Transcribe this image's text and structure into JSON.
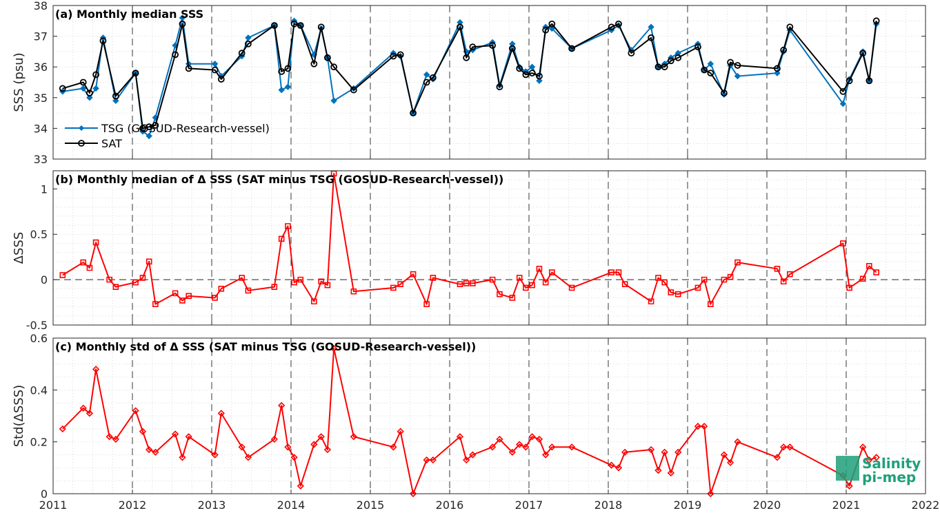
{
  "chart_data": [
    {
      "type": "line",
      "title": "(a) Monthly median SSS",
      "xlabel": "",
      "ylabel": "SSS (psu)",
      "xlim": [
        2011,
        2022
      ],
      "ylim": [
        33,
        38
      ],
      "x_ticks": [
        "2011",
        "2012",
        "2013",
        "2014",
        "2015",
        "2016",
        "2017",
        "2018",
        "2019",
        "2020",
        "2021",
        "2022"
      ],
      "y_ticks": [
        "33",
        "34",
        "35",
        "36",
        "37",
        "38"
      ],
      "grid": true,
      "legend_position": "bottom-left",
      "series": [
        {
          "name": "TSG (GOSUD-Research-vessel)",
          "color": "#0072BD",
          "marker": "diamond",
          "x": [
            2011.12,
            2011.38,
            2011.46,
            2011.54,
            2011.63,
            2011.79,
            2012.04,
            2012.13,
            2012.21,
            2012.29,
            2012.54,
            2012.63,
            2012.71,
            2013.04,
            2013.12,
            2013.38,
            2013.46,
            2013.79,
            2013.88,
            2013.96,
            2014.04,
            2014.12,
            2014.29,
            2014.38,
            2014.46,
            2014.54,
            2014.79,
            2015.29,
            2015.38,
            2015.54,
            2015.71,
            2015.79,
            2016.13,
            2016.21,
            2016.29,
            2016.54,
            2016.63,
            2016.79,
            2016.88,
            2016.96,
            2017.04,
            2017.13,
            2017.21,
            2017.29,
            2017.54,
            2018.04,
            2018.13,
            2018.29,
            2018.54,
            2018.63,
            2018.71,
            2018.79,
            2018.88,
            2019.13,
            2019.21,
            2019.29,
            2019.46,
            2019.54,
            2019.63,
            2020.13,
            2020.21,
            2020.29,
            2020.96,
            2021.04,
            2021.21,
            2021.29,
            2021.38
          ],
          "y": [
            35.2,
            35.3,
            35.0,
            35.3,
            36.95,
            34.9,
            35.8,
            33.9,
            33.75,
            34.35,
            36.7,
            37.6,
            36.1,
            36.1,
            35.7,
            36.35,
            36.95,
            37.35,
            35.25,
            35.35,
            37.5,
            37.35,
            36.4,
            37.25,
            36.3,
            34.9,
            35.3,
            36.45,
            36.35,
            34.5,
            35.75,
            35.6,
            37.45,
            36.5,
            36.55,
            36.8,
            35.4,
            36.75,
            36.0,
            35.85,
            36.0,
            35.55,
            37.3,
            37.25,
            36.6,
            37.2,
            37.35,
            36.55,
            37.3,
            36.0,
            36.1,
            36.3,
            36.45,
            36.75,
            35.9,
            36.1,
            35.1,
            36.05,
            35.7,
            35.8,
            36.5,
            37.2,
            34.8,
            35.6,
            36.5,
            35.55,
            37.4
          ]
        },
        {
          "name": "SAT",
          "color": "#000000",
          "marker": "circle",
          "x": [
            2011.12,
            2011.38,
            2011.46,
            2011.54,
            2011.63,
            2011.79,
            2012.04,
            2012.13,
            2012.21,
            2012.29,
            2012.54,
            2012.63,
            2012.71,
            2013.04,
            2013.12,
            2013.38,
            2013.46,
            2013.79,
            2013.88,
            2013.96,
            2014.04,
            2014.12,
            2014.29,
            2014.38,
            2014.46,
            2014.54,
            2014.79,
            2015.29,
            2015.38,
            2015.54,
            2015.71,
            2015.79,
            2016.13,
            2016.21,
            2016.29,
            2016.54,
            2016.63,
            2016.79,
            2016.88,
            2016.96,
            2017.04,
            2017.13,
            2017.21,
            2017.29,
            2017.54,
            2018.04,
            2018.13,
            2018.29,
            2018.54,
            2018.63,
            2018.71,
            2018.79,
            2018.88,
            2019.13,
            2019.21,
            2019.29,
            2019.46,
            2019.54,
            2019.63,
            2020.13,
            2020.21,
            2020.29,
            2020.96,
            2021.04,
            2021.21,
            2021.29,
            2021.38
          ],
          "y": [
            35.3,
            35.5,
            35.15,
            35.75,
            36.85,
            35.05,
            35.8,
            34.0,
            34.05,
            34.1,
            36.4,
            37.4,
            35.95,
            35.9,
            35.6,
            36.45,
            36.75,
            37.35,
            35.85,
            35.95,
            37.4,
            37.35,
            36.1,
            37.3,
            36.3,
            36.0,
            35.25,
            36.35,
            36.4,
            34.5,
            35.5,
            35.65,
            37.3,
            36.3,
            36.65,
            36.7,
            35.35,
            36.6,
            35.95,
            35.75,
            35.8,
            35.7,
            37.2,
            37.4,
            36.6,
            37.3,
            37.4,
            36.45,
            36.95,
            36.0,
            36.0,
            36.2,
            36.3,
            36.65,
            35.9,
            35.8,
            35.15,
            36.15,
            36.05,
            35.95,
            36.55,
            37.3,
            35.2,
            35.55,
            36.45,
            35.55,
            37.5
          ]
        }
      ]
    },
    {
      "type": "line",
      "title": "(b) Monthly median of Δ SSS (SAT minus TSG (GOSUD-Research-vessel))",
      "xlabel": "",
      "ylabel": "ΔSSS",
      "xlim": [
        2011,
        2022
      ],
      "ylim": [
        -0.5,
        1.2
      ],
      "x_ticks": [
        "2011",
        "2012",
        "2013",
        "2014",
        "2015",
        "2016",
        "2017",
        "2018",
        "2019",
        "2020",
        "2021",
        "2022"
      ],
      "y_ticks": [
        "-0.5",
        "0",
        "0.5",
        "1"
      ],
      "zero_line": true,
      "grid": true,
      "series": [
        {
          "color": "#FF0000",
          "marker": "square",
          "x": [
            2011.12,
            2011.38,
            2011.46,
            2011.54,
            2011.71,
            2011.79,
            2012.04,
            2012.13,
            2012.21,
            2012.29,
            2012.54,
            2012.63,
            2012.71,
            2013.04,
            2013.12,
            2013.38,
            2013.46,
            2013.79,
            2013.88,
            2013.96,
            2014.04,
            2014.12,
            2014.29,
            2014.38,
            2014.46,
            2014.54,
            2014.79,
            2015.29,
            2015.38,
            2015.54,
            2015.71,
            2015.79,
            2016.13,
            2016.21,
            2016.29,
            2016.54,
            2016.63,
            2016.79,
            2016.88,
            2016.96,
            2017.04,
            2017.13,
            2017.21,
            2017.29,
            2017.54,
            2018.04,
            2018.13,
            2018.21,
            2018.54,
            2018.63,
            2018.71,
            2018.79,
            2018.88,
            2019.13,
            2019.21,
            2019.29,
            2019.46,
            2019.54,
            2019.63,
            2020.13,
            2020.21,
            2020.29,
            2020.96,
            2021.04,
            2021.21,
            2021.29,
            2021.38
          ],
          "y": [
            0.05,
            0.19,
            0.13,
            0.41,
            0.0,
            -0.08,
            -0.03,
            0.02,
            0.2,
            -0.27,
            -0.15,
            -0.23,
            -0.18,
            -0.2,
            -0.1,
            0.02,
            -0.12,
            -0.08,
            0.45,
            0.59,
            -0.03,
            0.0,
            -0.24,
            -0.02,
            -0.06,
            1.17,
            -0.13,
            -0.09,
            -0.05,
            0.06,
            -0.27,
            0.02,
            -0.05,
            -0.04,
            -0.04,
            0.0,
            -0.16,
            -0.2,
            0.02,
            -0.09,
            -0.06,
            0.12,
            -0.03,
            0.08,
            -0.09,
            0.08,
            0.08,
            -0.05,
            -0.24,
            0.02,
            -0.03,
            -0.14,
            -0.16,
            -0.09,
            0.0,
            -0.27,
            0.0,
            0.03,
            0.19,
            0.12,
            -0.02,
            0.06,
            0.4,
            -0.09,
            0.01,
            0.15,
            0.08
          ]
        }
      ]
    },
    {
      "type": "line",
      "title": "(c) Monthly std of Δ SSS (SAT minus TSG (GOSUD-Research-vessel))",
      "xlabel": "",
      "ylabel": "Std(ΔSSS)",
      "xlim": [
        2011,
        2022
      ],
      "ylim": [
        0,
        0.6
      ],
      "x_ticks": [
        "2011",
        "2012",
        "2013",
        "2014",
        "2015",
        "2016",
        "2017",
        "2018",
        "2019",
        "2020",
        "2021",
        "2022"
      ],
      "y_ticks": [
        "0",
        "0.2",
        "0.4",
        "0.6"
      ],
      "grid": true,
      "series": [
        {
          "color": "#FF0000",
          "marker": "diamond",
          "x": [
            2011.12,
            2011.38,
            2011.46,
            2011.54,
            2011.71,
            2011.79,
            2012.04,
            2012.13,
            2012.21,
            2012.29,
            2012.54,
            2012.63,
            2012.71,
            2013.04,
            2013.12,
            2013.38,
            2013.46,
            2013.79,
            2013.88,
            2013.96,
            2014.04,
            2014.12,
            2014.29,
            2014.38,
            2014.46,
            2014.54,
            2014.79,
            2015.29,
            2015.38,
            2015.54,
            2015.71,
            2015.79,
            2016.13,
            2016.21,
            2016.29,
            2016.54,
            2016.63,
            2016.79,
            2016.88,
            2016.96,
            2017.04,
            2017.13,
            2017.21,
            2017.29,
            2017.54,
            2018.04,
            2018.13,
            2018.21,
            2018.54,
            2018.63,
            2018.71,
            2018.79,
            2018.88,
            2019.13,
            2019.21,
            2019.29,
            2019.46,
            2019.54,
            2019.63,
            2020.13,
            2020.21,
            2020.29,
            2020.96,
            2021.04,
            2021.21,
            2021.29,
            2021.38
          ],
          "y": [
            0.25,
            0.33,
            0.31,
            0.48,
            0.22,
            0.21,
            0.32,
            0.24,
            0.17,
            0.16,
            0.23,
            0.14,
            0.22,
            0.15,
            0.31,
            0.18,
            0.14,
            0.21,
            0.34,
            0.18,
            0.14,
            0.03,
            0.19,
            0.22,
            0.17,
            0.56,
            0.22,
            0.18,
            0.24,
            0.0,
            0.13,
            0.13,
            0.22,
            0.13,
            0.15,
            0.18,
            0.21,
            0.16,
            0.19,
            0.18,
            0.22,
            0.21,
            0.15,
            0.18,
            0.18,
            0.11,
            0.1,
            0.16,
            0.17,
            0.09,
            0.16,
            0.08,
            0.16,
            0.26,
            0.26,
            0.0,
            0.15,
            0.12,
            0.2,
            0.14,
            0.18,
            0.18,
            0.07,
            0.03,
            0.18,
            0.13,
            0.14
          ]
        }
      ]
    }
  ],
  "logo": {
    "line1": "Salinity",
    "line2": "pi-mep"
  }
}
